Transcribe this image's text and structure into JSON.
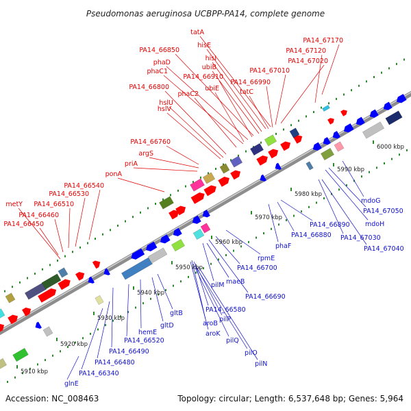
{
  "title": "Pseudomonas aeruginosa UCBPP-PA14, complete genome",
  "footer": {
    "accession": "Accession: NC_008463",
    "stats": "Topology: circular; Length: 6,537,648 bp; Genes: 5,964"
  },
  "colors": {
    "top_strand": "#ff0000",
    "bottom_strand": "#0000ff",
    "backbone": "#9a9a9a",
    "tick": "#2a8a2a",
    "top_label": "#e00000",
    "bottom_label": "#1010c8"
  },
  "kbp_ticks": [
    "5910 kbp",
    "5920 kbp",
    "5930 kbp",
    "5940 kbp",
    "5950 kbp",
    "5960 kbp",
    "5970 kbp",
    "5980 kbp",
    "5990 kbp",
    "6000 kbp"
  ],
  "top_labels": [
    "tatA",
    "hisE",
    "hisI",
    "ubiB",
    "PA14_67170",
    "PA14_66850",
    "PA14_67120",
    "phaD",
    "PA14_67020",
    "phaC1",
    "PA14_66910",
    "PA14_67010",
    "ubiE",
    "PA14_66990",
    "PA14_66800",
    "phaC2",
    "tatC",
    "hslU",
    "hslV",
    "PA14_66760",
    "argS",
    "priA",
    "ponA",
    "PA14_66540",
    "metY",
    "PA14_66530",
    "PA14_66510",
    "PA14_66460",
    "PA14_66450"
  ],
  "bottom_labels": [
    "mdoG",
    "PA14_67050",
    "mdoH",
    "PA14_66890",
    "PA14_67030",
    "PA14_66880",
    "PA14_67040",
    "phaF",
    "rpmE",
    "PA14_66700",
    "maeB",
    "pilM",
    "PA14_66690",
    "PA14_66580",
    "pilP",
    "aroB",
    "aroK",
    "pilQ",
    "pilO",
    "pilN",
    "gltB",
    "gltD",
    "hemE",
    "PA14_66520",
    "PA14_66490",
    "PA14_66480",
    "PA14_66340",
    "glnE"
  ]
}
